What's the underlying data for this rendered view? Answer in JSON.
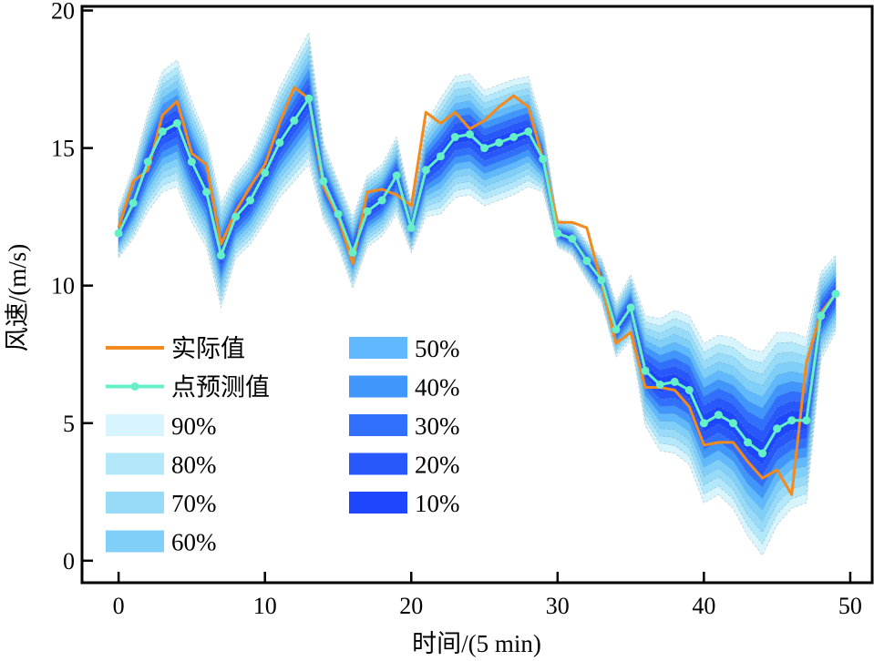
{
  "chart_data": {
    "type": "line",
    "title": "",
    "xlabel": "时间/(5 min)",
    "ylabel": "风速/(m/s)",
    "xlim": [
      -2.5,
      51.5
    ],
    "ylim": [
      -0.8,
      20.15
    ],
    "xticks": [
      0,
      10,
      20,
      30,
      40,
      50
    ],
    "yticks": [
      0,
      5,
      10,
      15,
      20
    ],
    "grid": false,
    "legend_placement": "lower-left",
    "x": [
      0,
      1,
      2,
      3,
      4,
      5,
      6,
      7,
      8,
      9,
      10,
      11,
      12,
      13,
      14,
      15,
      16,
      17,
      18,
      19,
      20,
      21,
      22,
      23,
      24,
      25,
      26,
      27,
      28,
      29,
      30,
      31,
      32,
      33,
      34,
      35,
      36,
      37,
      38,
      39,
      40,
      41,
      42,
      43,
      44,
      45,
      46,
      47,
      48,
      49
    ],
    "series": [
      {
        "name": "实际值",
        "color": "#f28a1e",
        "marker": "none",
        "values": [
          12.1,
          13.8,
          14.2,
          16.2,
          16.7,
          14.8,
          14.4,
          11.5,
          12.7,
          13.6,
          14.4,
          15.9,
          17.2,
          16.8,
          13.6,
          12.5,
          10.8,
          13.4,
          13.5,
          13.3,
          12.9,
          16.3,
          15.9,
          16.3,
          15.7,
          16.0,
          16.5,
          16.9,
          16.5,
          14.6,
          12.3,
          12.3,
          12.1,
          10.1,
          7.9,
          8.3,
          6.3,
          6.3,
          6.2,
          5.6,
          4.2,
          4.3,
          4.3,
          3.6,
          3.0,
          3.3,
          2.4,
          7.2,
          9.0,
          9.7
        ]
      },
      {
        "name": "点预测值",
        "color": "#66f0c8",
        "marker": "circle",
        "values": [
          11.9,
          13.0,
          14.5,
          15.6,
          15.9,
          14.5,
          13.4,
          11.1,
          12.5,
          13.1,
          14.1,
          15.2,
          16.0,
          16.8,
          13.8,
          12.6,
          11.2,
          12.7,
          13.1,
          14.0,
          12.1,
          14.2,
          14.7,
          15.4,
          15.5,
          15.0,
          15.2,
          15.4,
          15.6,
          14.6,
          11.9,
          11.7,
          10.9,
          10.2,
          8.4,
          9.2,
          6.9,
          6.4,
          6.5,
          6.2,
          5.0,
          5.3,
          5.0,
          4.3,
          3.9,
          4.8,
          5.1,
          5.1,
          8.9,
          9.7
        ]
      }
    ],
    "interval_center": "点预测值",
    "interval_halfwidth_90": [
      0.9,
      1.3,
      1.8,
      2.2,
      2.3,
      2.2,
      2.0,
      1.9,
      1.5,
      1.6,
      1.8,
      2.0,
      2.2,
      2.4,
      1.4,
      1.2,
      1.3,
      1.3,
      1.3,
      1.4,
      0.9,
      1.7,
      2.1,
      2.2,
      2.2,
      2.1,
      2.1,
      2.1,
      2.0,
      1.2,
      0.5,
      0.6,
      0.7,
      0.8,
      1.0,
      1.2,
      2.0,
      2.4,
      2.6,
      2.7,
      2.9,
      2.9,
      3.1,
      3.4,
      3.7,
      3.5,
      3.2,
      3.0,
      1.6,
      1.4
    ],
    "intervals": [
      {
        "label": "90%",
        "level": 0.9,
        "color": "#d8f4fc"
      },
      {
        "label": "80%",
        "level": 0.8,
        "color": "#b2e8fa"
      },
      {
        "label": "70%",
        "level": 0.7,
        "color": "#97dbf9"
      },
      {
        "label": "60%",
        "level": 0.6,
        "color": "#80cff8"
      },
      {
        "label": "50%",
        "level": 0.5,
        "color": "#60b9fc"
      },
      {
        "label": "40%",
        "level": 0.4,
        "color": "#4096fa"
      },
      {
        "label": "30%",
        "level": 0.3,
        "color": "#3070fc"
      },
      {
        "label": "20%",
        "level": 0.2,
        "color": "#2858fc"
      },
      {
        "label": "10%",
        "level": 0.1,
        "color": "#1e46fc"
      }
    ],
    "legend": [
      "实际值",
      "点预测值",
      "90%",
      "80%",
      "70%",
      "60%",
      "50%",
      "40%",
      "30%",
      "20%",
      "10%"
    ]
  }
}
